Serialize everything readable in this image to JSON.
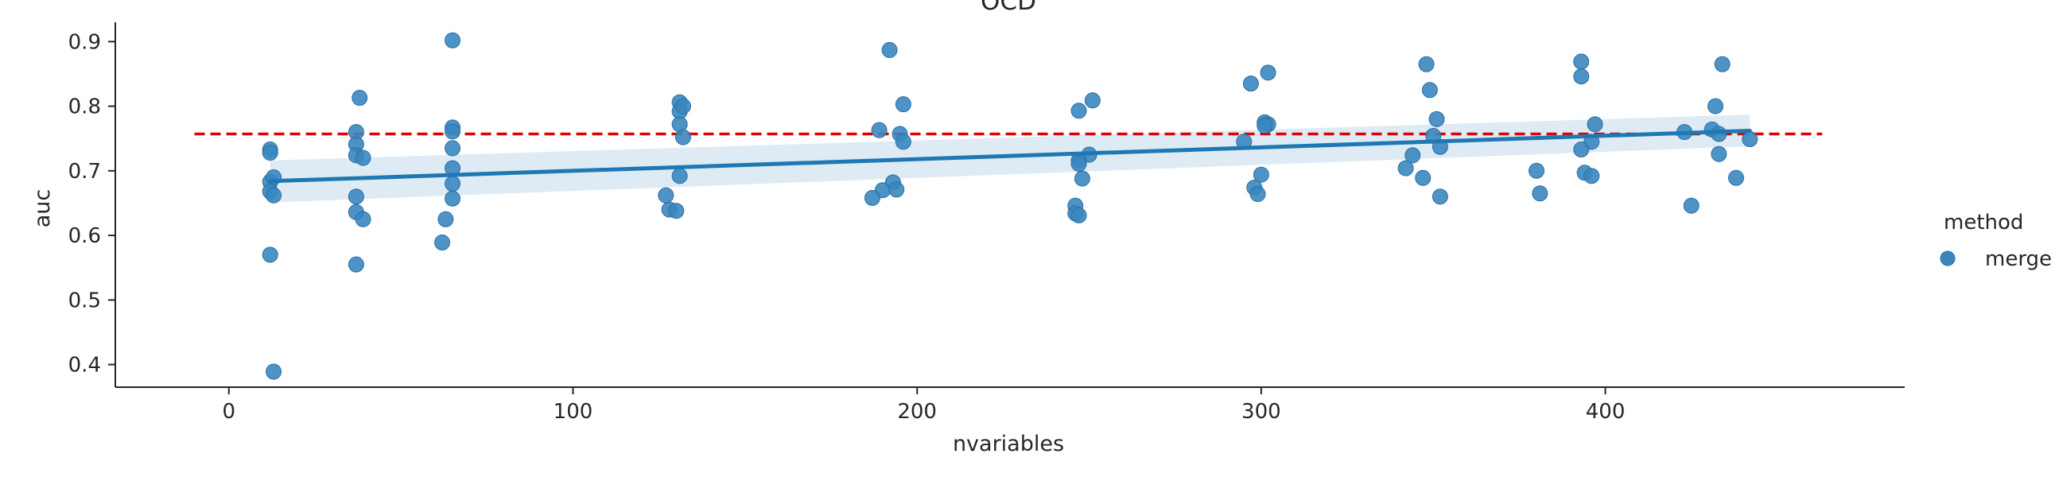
{
  "chart_data": {
    "type": "scatter",
    "title": "OCD",
    "xlabel": "nvariables",
    "ylabel": "auc",
    "xlim": [
      -33,
      487
    ],
    "ylim": [
      0.365,
      0.93
    ],
    "xticks": [
      0,
      100,
      200,
      300,
      400
    ],
    "yticks": [
      0.4,
      0.5,
      0.6,
      0.7,
      0.8,
      0.9
    ],
    "grid": false,
    "legend": {
      "title": "method",
      "entries": [
        "merge"
      ],
      "placement": "right"
    },
    "series": [
      {
        "name": "merge",
        "color": "#3a87c0",
        "points": [
          [
            12,
            0.733
          ],
          [
            12,
            0.728
          ],
          [
            12,
            0.683
          ],
          [
            13,
            0.69
          ],
          [
            12,
            0.668
          ],
          [
            13,
            0.662
          ],
          [
            12,
            0.57
          ],
          [
            13,
            0.389
          ],
          [
            37,
            0.76
          ],
          [
            38,
            0.813
          ],
          [
            37,
            0.741
          ],
          [
            37,
            0.724
          ],
          [
            39,
            0.72
          ],
          [
            37,
            0.66
          ],
          [
            37,
            0.636
          ],
          [
            39,
            0.625
          ],
          [
            37,
            0.555
          ],
          [
            65,
            0.902
          ],
          [
            65,
            0.767
          ],
          [
            65,
            0.761
          ],
          [
            65,
            0.735
          ],
          [
            65,
            0.704
          ],
          [
            65,
            0.68
          ],
          [
            65,
            0.657
          ],
          [
            63,
            0.625
          ],
          [
            62,
            0.589
          ],
          [
            131,
            0.806
          ],
          [
            131,
            0.792
          ],
          [
            132,
            0.8
          ],
          [
            131,
            0.772
          ],
          [
            132,
            0.752
          ],
          [
            131,
            0.692
          ],
          [
            127,
            0.662
          ],
          [
            128,
            0.64
          ],
          [
            130,
            0.638
          ],
          [
            192,
            0.887
          ],
          [
            196,
            0.803
          ],
          [
            189,
            0.763
          ],
          [
            195,
            0.757
          ],
          [
            196,
            0.745
          ],
          [
            193,
            0.682
          ],
          [
            190,
            0.67
          ],
          [
            194,
            0.671
          ],
          [
            187,
            0.658
          ],
          [
            251,
            0.809
          ],
          [
            247,
            0.793
          ],
          [
            250,
            0.725
          ],
          [
            247,
            0.716
          ],
          [
            247,
            0.711
          ],
          [
            248,
            0.688
          ],
          [
            246,
            0.646
          ],
          [
            246,
            0.634
          ],
          [
            247,
            0.631
          ],
          [
            302,
            0.852
          ],
          [
            297,
            0.835
          ],
          [
            301,
            0.775
          ],
          [
            302,
            0.772
          ],
          [
            301,
            0.77
          ],
          [
            295,
            0.745
          ],
          [
            300,
            0.694
          ],
          [
            298,
            0.674
          ],
          [
            299,
            0.664
          ],
          [
            348,
            0.865
          ],
          [
            349,
            0.825
          ],
          [
            351,
            0.78
          ],
          [
            350,
            0.754
          ],
          [
            352,
            0.737
          ],
          [
            344,
            0.724
          ],
          [
            342,
            0.704
          ],
          [
            347,
            0.689
          ],
          [
            352,
            0.66
          ],
          [
            393,
            0.869
          ],
          [
            393,
            0.846
          ],
          [
            397,
            0.772
          ],
          [
            396,
            0.745
          ],
          [
            393,
            0.733
          ],
          [
            380,
            0.7
          ],
          [
            394,
            0.697
          ],
          [
            396,
            0.692
          ],
          [
            381,
            0.665
          ],
          [
            434,
            0.865
          ],
          [
            432,
            0.8
          ],
          [
            431,
            0.764
          ],
          [
            433,
            0.757
          ],
          [
            423,
            0.76
          ],
          [
            442,
            0.749
          ],
          [
            433,
            0.726
          ],
          [
            438,
            0.689
          ],
          [
            425,
            0.646
          ]
        ]
      }
    ],
    "regression": {
      "x": [
        12,
        442
      ],
      "y": [
        0.684,
        0.762
      ],
      "ci_lower": [
        0.651,
        0.738
      ],
      "ci_upper": [
        0.716,
        0.787
      ],
      "color": "#1f77b4"
    },
    "reference_line": {
      "y": 0.757,
      "x": [
        -10,
        463
      ],
      "style": "dashed",
      "color": "#e00000"
    }
  }
}
